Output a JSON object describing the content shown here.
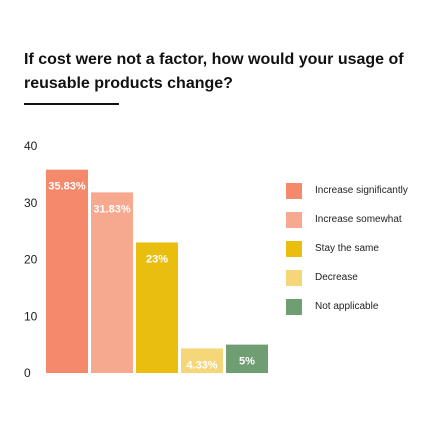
{
  "chart_data": {
    "type": "bar",
    "title": "If cost were not a factor, how would your usage of reusable products change?",
    "xlabel": "",
    "ylabel": "",
    "ylim": [
      0,
      40
    ],
    "yticks": [
      0,
      10,
      20,
      30,
      40
    ],
    "grid": false,
    "legend_position": "right",
    "categories": [
      "Increase significantly",
      "Increase somewhat",
      "Stay the same",
      "Decrease",
      "Not applicable"
    ],
    "values": [
      35.83,
      31.83,
      23,
      4.33,
      5
    ],
    "data_labels": [
      "35.83%",
      "31.83%",
      "23%",
      "4.33%",
      "5%"
    ],
    "colors": [
      "#f4896b",
      "#f7a98f",
      "#e9be0f",
      "#f5d77a",
      "#6f9e72"
    ]
  }
}
